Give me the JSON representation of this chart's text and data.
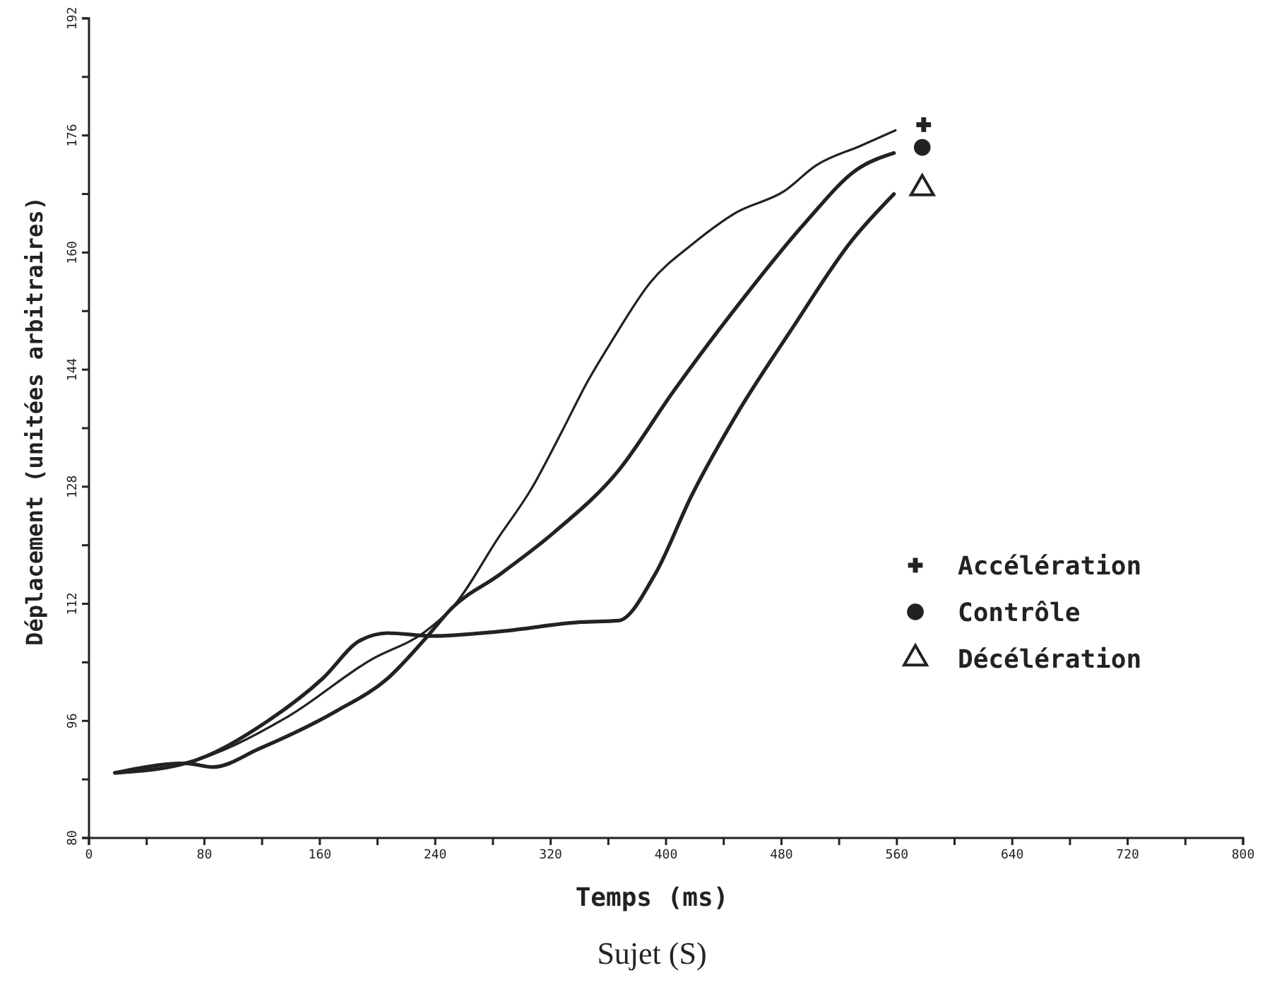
{
  "chart_data": {
    "type": "line",
    "xlabel": "Temps (ms)",
    "ylabel": "Déplacement (unitées arbitraires)",
    "annotations": [
      "Sujet (S)"
    ],
    "xlim": [
      0,
      800
    ],
    "ylim": [
      80,
      192
    ],
    "xticks": [
      0,
      {
        "value": 40,
        "label": null
      },
      80,
      {
        "value": 120,
        "label": null
      },
      160,
      {
        "value": 200,
        "label": null
      },
      240,
      {
        "value": 280,
        "label": null
      },
      320,
      {
        "value": 360,
        "label": null
      },
      400,
      {
        "value": 440,
        "label": null
      },
      480,
      {
        "value": 520,
        "label": null
      },
      560,
      {
        "value": 600,
        "label": null
      },
      640,
      {
        "value": 680,
        "label": null
      },
      720,
      {
        "value": 760,
        "label": null
      },
      800
    ],
    "yticks": [
      80,
      {
        "value": 88,
        "label": null
      },
      96,
      {
        "value": 104,
        "label": null
      },
      112,
      {
        "value": 120,
        "label": null
      },
      128,
      {
        "value": 136,
        "label": null
      },
      144,
      {
        "value": 152,
        "label": null
      },
      160,
      {
        "value": 168,
        "label": null
      },
      176,
      {
        "value": 184,
        "label": null
      },
      192
    ],
    "grid": false,
    "legend": "right",
    "line_style": "solid",
    "series": [
      {
        "name": "Accélération",
        "color": "#222222",
        "x": [
          18,
          67,
          138,
          195,
          233,
          252,
          284,
          306,
          329,
          344,
          363,
          389,
          418,
          449,
          482,
          504,
          535,
          559
        ],
        "values": [
          88.9,
          90.2,
          96.6,
          104.3,
          108.2,
          111.5,
          121.1,
          127.5,
          136.0,
          141.8,
          148.1,
          155.9,
          161.1,
          165.5,
          168.4,
          171.9,
          174.6,
          176.7
        ]
      },
      {
        "name": "Contrôle",
        "color": "#222222",
        "x": [
          18,
          67,
          86,
          118,
          172,
          207,
          233,
          252,
          284,
          322,
          367,
          405,
          449,
          497,
          532,
          558
        ],
        "values": [
          88.9,
          90.2,
          89.7,
          92.2,
          97.4,
          101.8,
          107.2,
          111.5,
          115.9,
          121.7,
          130.2,
          141.0,
          152.6,
          164.2,
          171.3,
          173.6
        ]
      },
      {
        "name": "Décélération",
        "color": "#222222",
        "x": [
          18,
          67,
          124,
          162,
          188,
          207,
          239,
          284,
          341,
          367,
          392,
          418,
          449,
          487,
          529,
          558
        ],
        "values": [
          88.9,
          90.2,
          96.0,
          101.8,
          107.0,
          108.0,
          107.6,
          108.2,
          109.5,
          109.7,
          115.9,
          126.9,
          137.9,
          149.5,
          161.7,
          168.0
        ]
      }
    ]
  }
}
